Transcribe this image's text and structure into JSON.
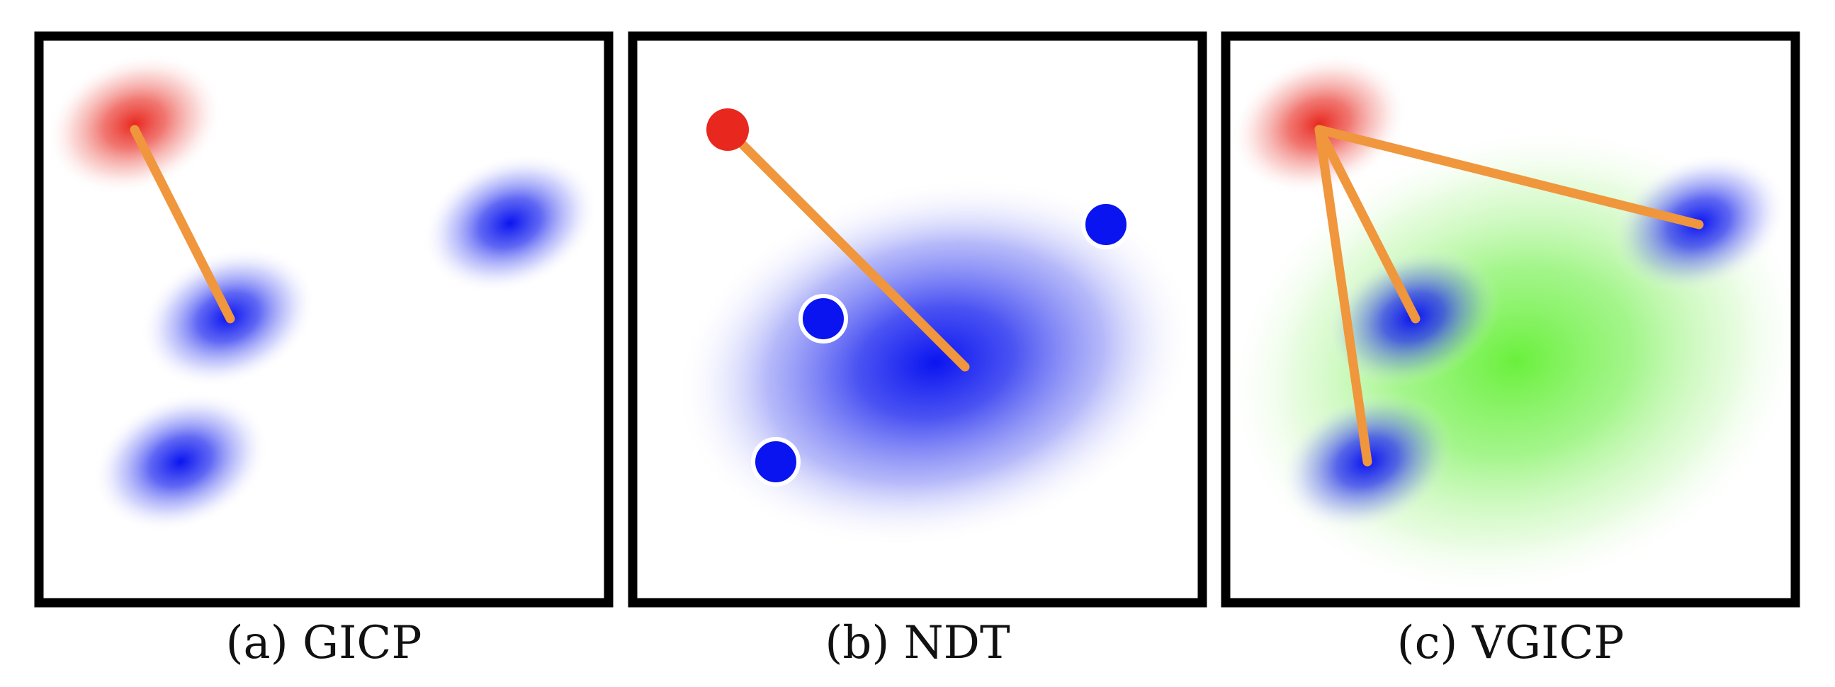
{
  "colors": {
    "source": "#e8281f",
    "target": "#0a14f0",
    "voxel": "#6af03c",
    "correspondence": "#f0963c",
    "border": "#000000",
    "caption_text": "#111111"
  },
  "panels": [
    {
      "id": "gicp",
      "caption": "(a) GICP"
    },
    {
      "id": "ndt",
      "caption": "(b) NDT"
    },
    {
      "id": "vgicp",
      "caption": "(c) VGICP"
    }
  ]
}
